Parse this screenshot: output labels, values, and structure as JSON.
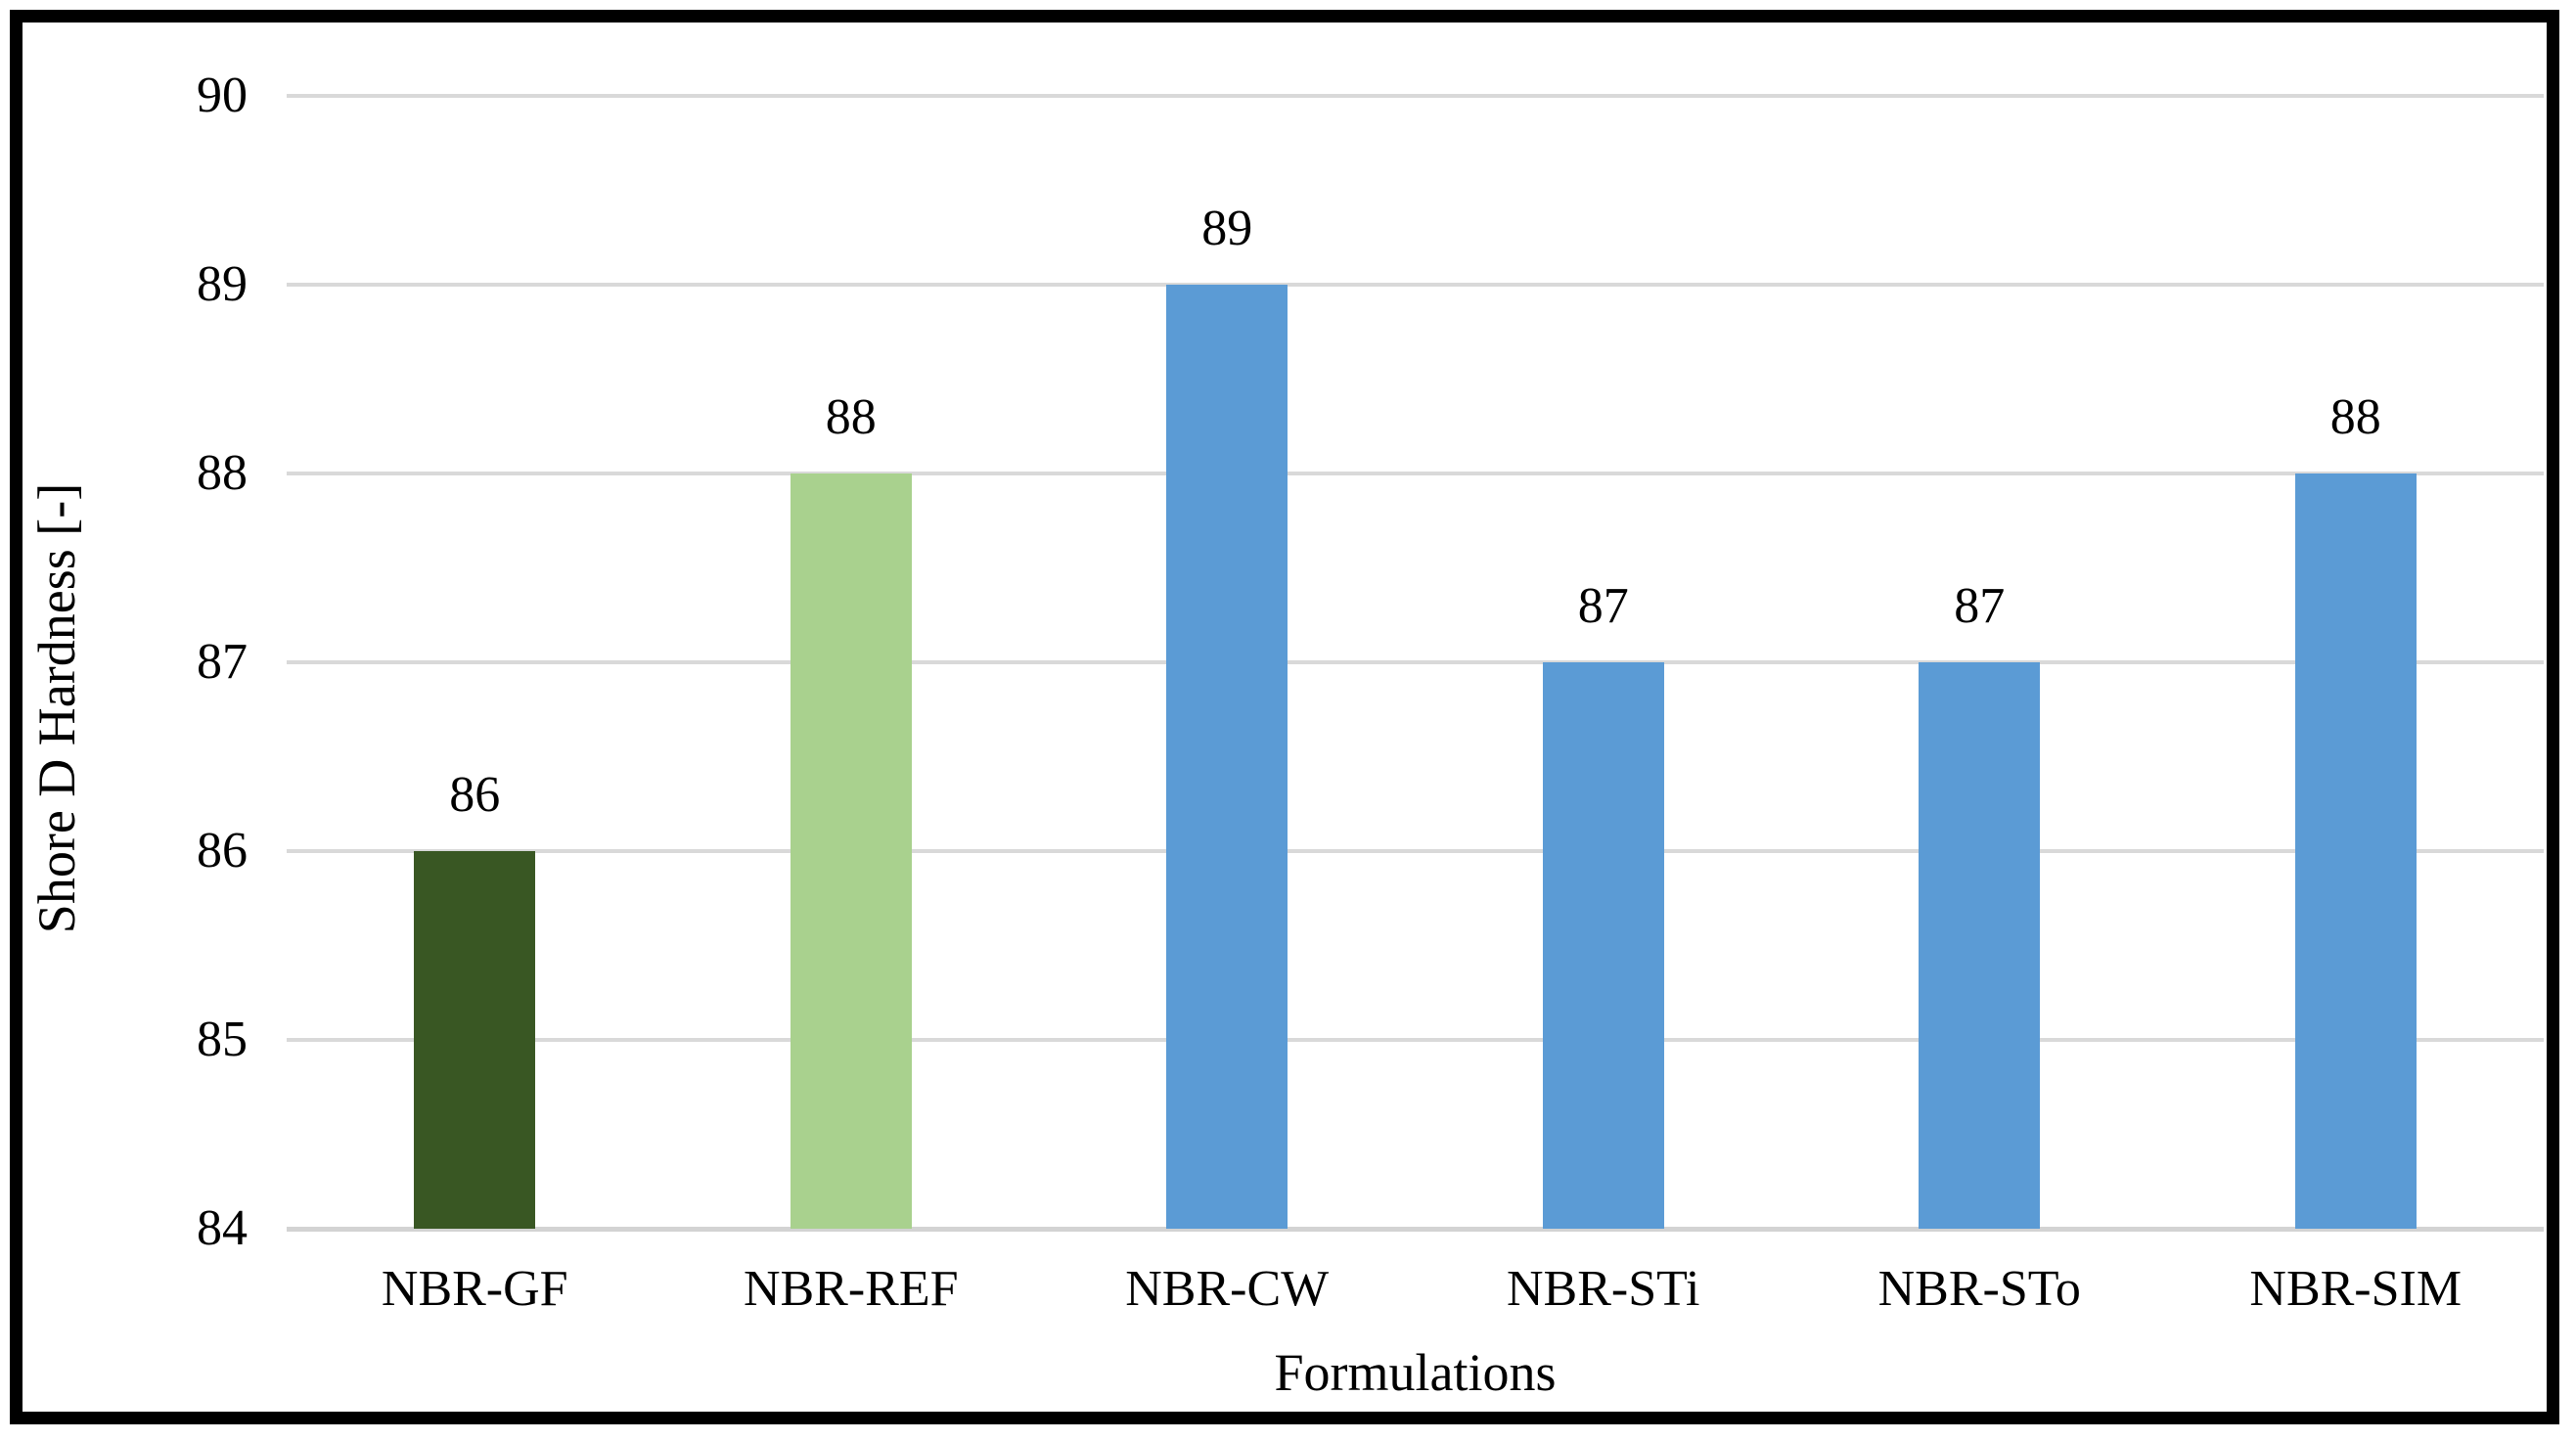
{
  "figure": {
    "background_color": "#ffffff",
    "border_color": "#000000"
  },
  "chart_data": {
    "type": "bar",
    "title": "",
    "xlabel": "Formulations",
    "ylabel": "Shore D Hardness [-]",
    "categories": [
      "NBR-GF",
      "NBR-REF",
      "NBR-CW",
      "NBR-STi",
      "NBR-STo",
      "NBR-SIM"
    ],
    "values": [
      86,
      88,
      89,
      87,
      87,
      88
    ],
    "data_labels": [
      "86",
      "88",
      "89",
      "87",
      "87",
      "88"
    ],
    "bar_colors": [
      "#395723",
      "#a9d18e",
      "#5b9bd5",
      "#5b9bd5",
      "#5b9bd5",
      "#5b9bd5"
    ],
    "ylim": [
      84,
      90
    ],
    "yticks": [
      84,
      85,
      86,
      87,
      88,
      89,
      90
    ],
    "ytick_labels": [
      "84",
      "85",
      "86",
      "87",
      "88",
      "89",
      "90"
    ],
    "grid": "horizontal",
    "gridline_color": "#d9d9d9",
    "legend_position": "none"
  }
}
